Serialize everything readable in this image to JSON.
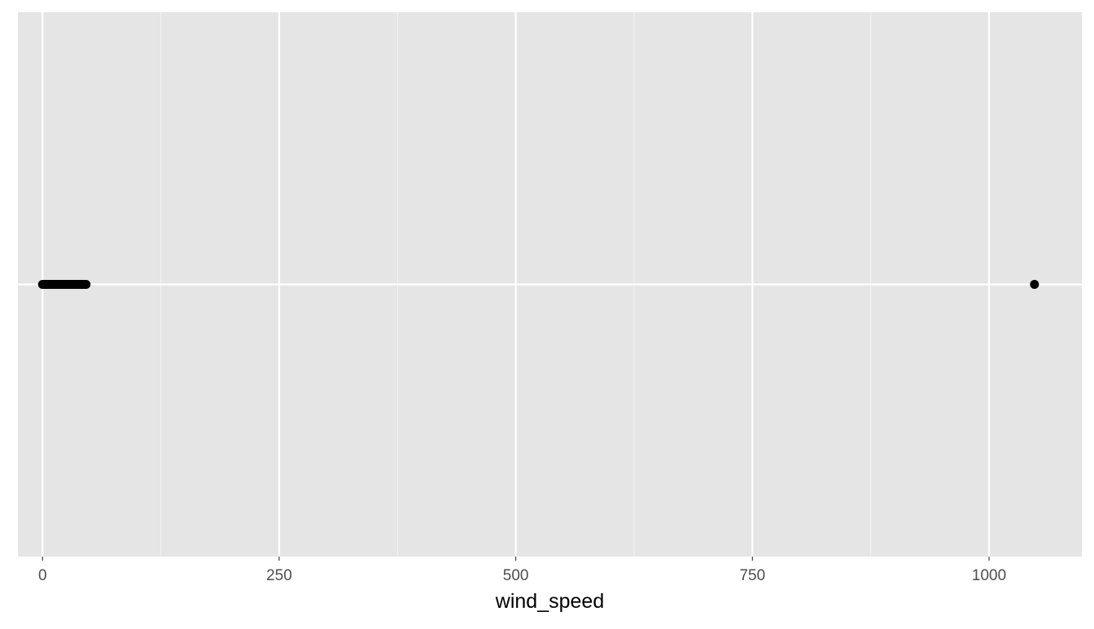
{
  "chart_data": {
    "type": "scatter",
    "title": "",
    "xlabel": "wind_speed",
    "ylabel": "",
    "xlim": [
      -26,
      1098
    ],
    "ylim": [
      -1,
      1
    ],
    "x_ticks": [
      0,
      250,
      500,
      750,
      1000
    ],
    "x_tick_labels": [
      "0",
      "250",
      "500",
      "750",
      "1000"
    ],
    "x_minor_ticks": [
      125,
      375,
      625,
      875
    ],
    "y_ticks": [
      0
    ],
    "y_tick_labels": [
      ""
    ],
    "grid": true,
    "legend": "none",
    "series": [
      {
        "values_x": [
          0,
          1,
          2,
          3,
          4,
          5,
          6,
          7,
          8,
          9,
          10,
          11,
          12,
          13,
          14,
          15,
          16,
          17,
          18,
          19,
          20,
          21,
          22,
          23,
          24,
          25,
          26,
          27,
          28,
          29,
          30,
          31,
          32,
          33,
          34,
          35,
          36,
          37,
          38,
          39,
          40,
          41,
          42,
          43,
          44,
          45,
          46,
          1048
        ],
        "values_y": [
          0,
          0,
          0,
          0,
          0,
          0,
          0,
          0,
          0,
          0,
          0,
          0,
          0,
          0,
          0,
          0,
          0,
          0,
          0,
          0,
          0,
          0,
          0,
          0,
          0,
          0,
          0,
          0,
          0,
          0,
          0,
          0,
          0,
          0,
          0,
          0,
          0,
          0,
          0,
          0,
          0,
          0,
          0,
          0,
          0,
          0,
          0,
          0
        ]
      }
    ],
    "colors": {
      "panel_background": "#e5e5e5",
      "grid_major": "#ffffff",
      "grid_minor": "#f2f2f2",
      "point": "#000000",
      "tick_label": "#4d4d4d"
    }
  }
}
